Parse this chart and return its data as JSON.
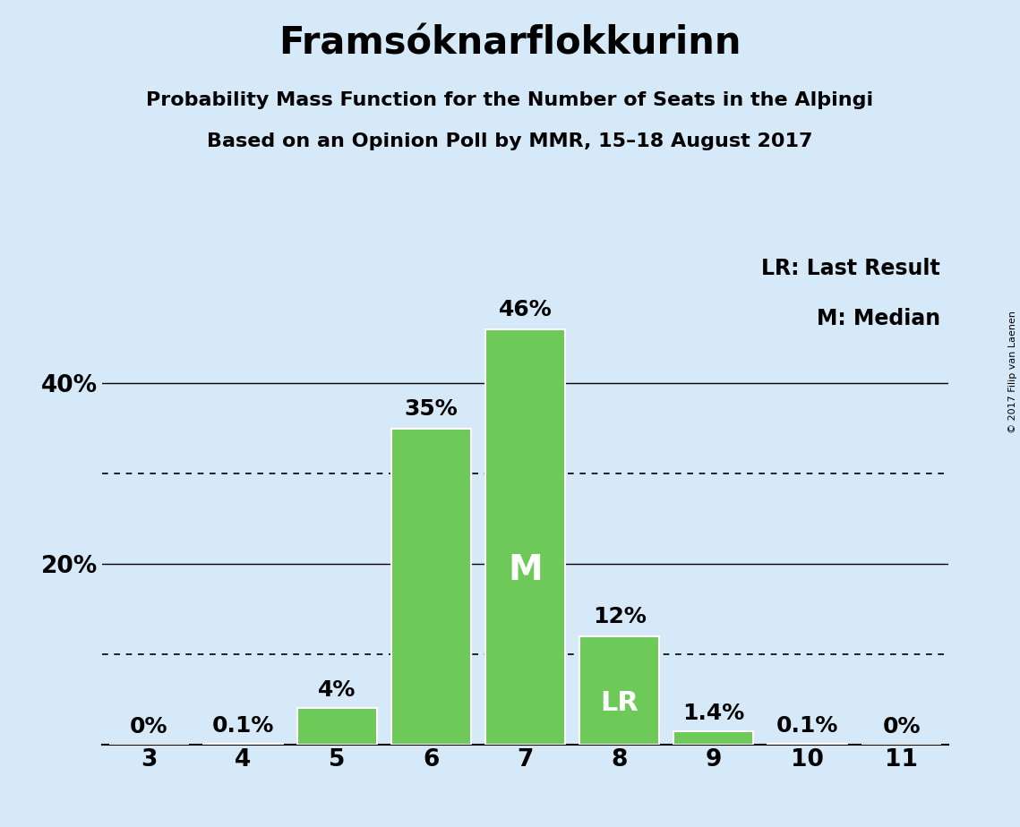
{
  "title": "Framsóknarflokkurinn",
  "subtitle1": "Probability Mass Function for the Number of Seats in the Alþingi",
  "subtitle2": "Based on an Opinion Poll by MMR, 15–18 August 2017",
  "seats": [
    3,
    4,
    5,
    6,
    7,
    8,
    9,
    10,
    11
  ],
  "probabilities": [
    0.0,
    0.1,
    4.0,
    35.0,
    46.0,
    12.0,
    1.4,
    0.1,
    0.0
  ],
  "bar_labels": [
    "0%",
    "0.1%",
    "4%",
    "35%",
    "46%",
    "12%",
    "1.4%",
    "0.1%",
    "0%"
  ],
  "bar_color": "#6dc958",
  "bar_edge_color": "#ffffff",
  "background_color": "#d6e9f8",
  "median_seat": 7,
  "lr_seat": 8,
  "median_label": "M",
  "lr_label": "LR",
  "legend_lr": "LR: Last Result",
  "legend_m": "M: Median",
  "yticks": [
    0,
    10,
    20,
    30,
    40
  ],
  "ytick_labels": [
    "",
    "",
    "20%",
    "",
    "40%"
  ],
  "solid_gridlines": [
    20,
    40
  ],
  "dotted_gridlines": [
    10,
    30
  ],
  "copyright": "© 2017 Filip van Laenen",
  "title_fontsize": 30,
  "subtitle_fontsize": 16,
  "axis_fontsize": 19,
  "bar_label_fontsize": 18,
  "legend_fontsize": 17,
  "inbar_fontsize_m": 28,
  "inbar_fontsize_lr": 22
}
